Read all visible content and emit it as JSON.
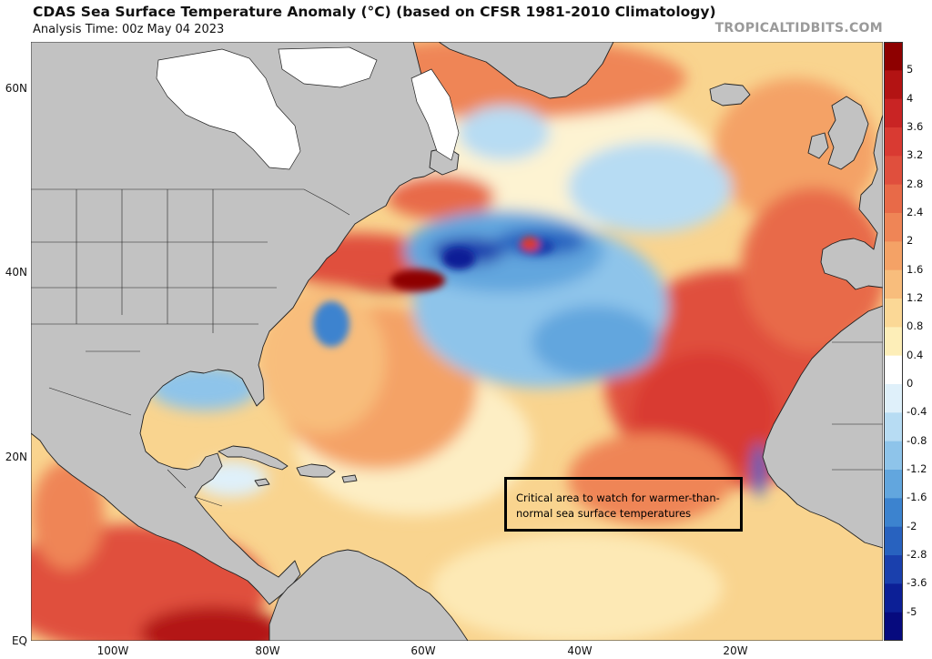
{
  "header": {
    "title": "CDAS Sea Surface Temperature Anomaly (°C) (based on CFSR 1981-2010 Climatology)",
    "analysis_time": "Analysis Time: 00z May 04 2023",
    "brand": "TROPICALTIDBITS.COM"
  },
  "map": {
    "lat_labels": [
      "60N",
      "40N",
      "20N",
      "EQ"
    ],
    "lon_labels": [
      "100W",
      "80W",
      "60W",
      "40W",
      "20W"
    ],
    "annotation": "Critical area to watch for warmer-than-normal sea surface temperatures"
  },
  "colorbar": {
    "labels": [
      "5",
      "4",
      "3.6",
      "3.2",
      "2.8",
      "2.4",
      "2",
      "1.6",
      "1.2",
      "0.8",
      "0.4",
      "0",
      "-0.4",
      "-0.8",
      "-1.2",
      "-1.6",
      "-2",
      "-2.8",
      "-3.6",
      "-5"
    ],
    "colors": [
      "#8e0000",
      "#b31313",
      "#c92424",
      "#d93a32",
      "#e04f3d",
      "#e86a48",
      "#ef8556",
      "#f4a266",
      "#f8bd7c",
      "#fbd896",
      "#fdeeb8",
      "#ffffff",
      "#dff0fa",
      "#b7dcf3",
      "#8ec4ea",
      "#62a6de",
      "#3c83cf",
      "#2862bf",
      "#1a40ad",
      "#0c1f96",
      "#060a7e"
    ]
  },
  "colors": {
    "land": "#c2c2c2",
    "ice": "#ffffff",
    "ocean_base": "#f9d48f"
  }
}
